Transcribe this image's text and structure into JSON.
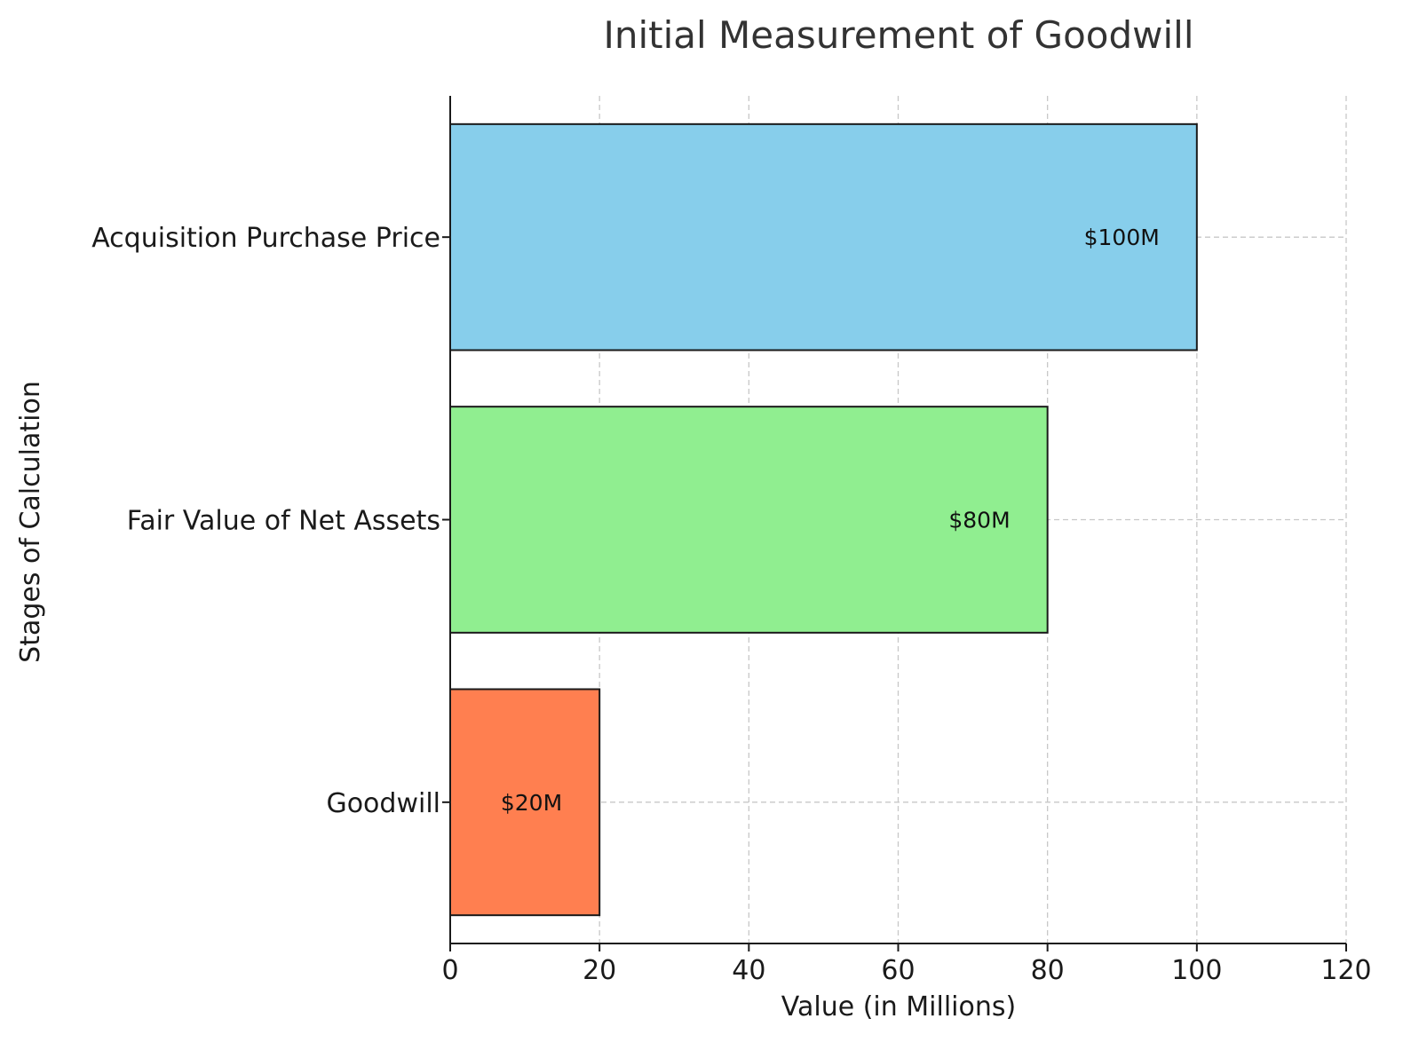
{
  "chart_data": {
    "type": "bar",
    "orientation": "horizontal",
    "title": "Initial Measurement of Goodwill",
    "xlabel": "Value (in Millions)",
    "ylabel": "Stages of Calculation",
    "categories": [
      "Acquisition Purchase Price",
      "Fair Value of Net Assets",
      "Goodwill"
    ],
    "values": [
      100,
      80,
      20
    ],
    "data_labels": [
      "$100M",
      "$80M",
      "$20M"
    ],
    "colors": [
      "#87CEEB",
      "#90EE90",
      "#FF7F50"
    ],
    "xlim": [
      0,
      120
    ],
    "xticks": [
      0,
      20,
      40,
      60,
      80,
      100,
      120
    ],
    "grid": true,
    "legend": "none"
  }
}
